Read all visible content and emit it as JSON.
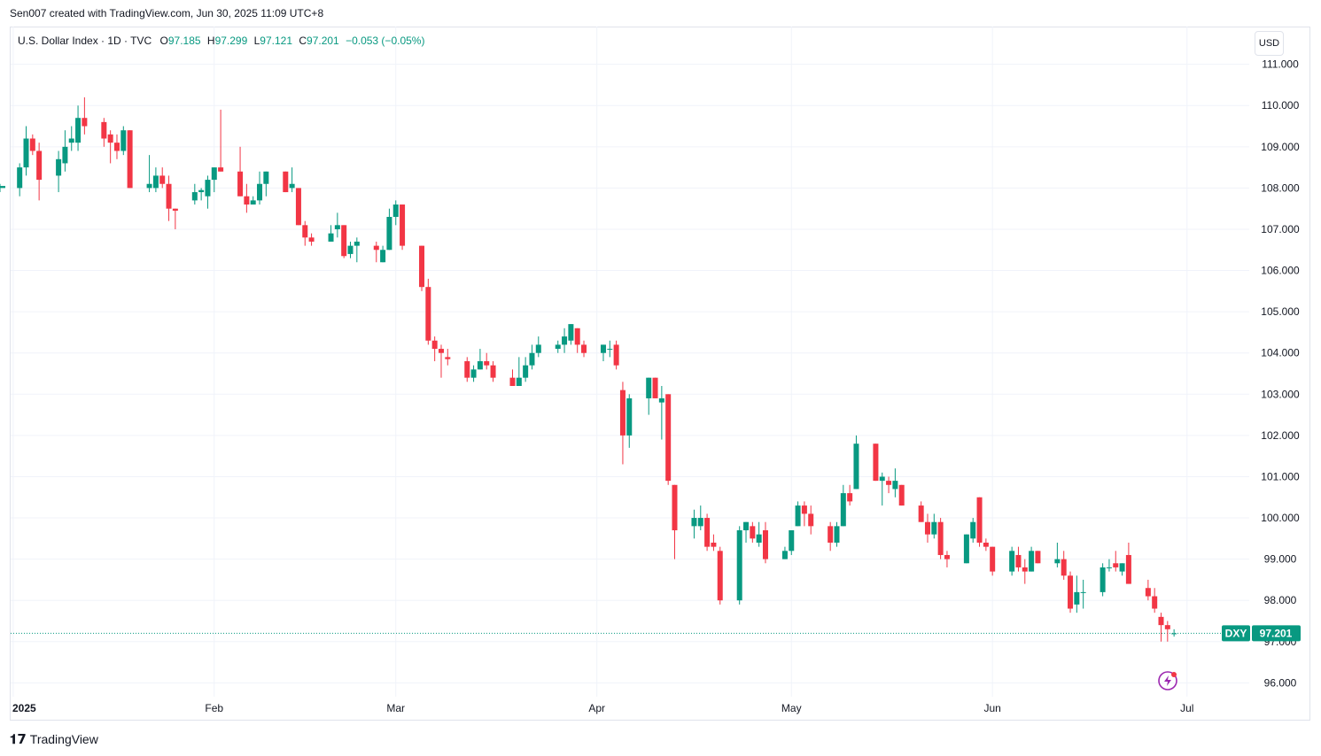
{
  "header": {
    "attribution": "Sen007 created with TradingView.com, Jun 30, 2025 11:09 UTC+8"
  },
  "legend": {
    "symbol": "U.S. Dollar Index · 1D · TVC",
    "open_label": "O",
    "open": "97.185",
    "high_label": "H",
    "high": "97.299",
    "low_label": "L",
    "low": "97.121",
    "close_label": "C",
    "close": "97.201",
    "change": "−0.053 (−0.05%)"
  },
  "currency_button": "USD",
  "price_tag": {
    "ticker": "DXY",
    "value": "97.201"
  },
  "footer": {
    "brand": "TradingView"
  },
  "colors": {
    "up": "#089981",
    "down": "#f23645",
    "grid": "#f0f3fa",
    "accent": "#9c27b0"
  },
  "icons": {
    "brand_logo": "tradingview-logo-icon",
    "alert": "lightning-alert-icon"
  },
  "chart_data": {
    "type": "candlestick",
    "title": "U.S. Dollar Index · 1D · TVC",
    "ylim": [
      95.6,
      111.1
    ],
    "y_ticks": [
      "96.000",
      "97.000",
      "98.000",
      "99.000",
      "100.000",
      "101.000",
      "102.000",
      "103.000",
      "104.000",
      "105.000",
      "106.000",
      "107.000",
      "108.000",
      "109.000",
      "110.000",
      "111.000"
    ],
    "x_ticks": [
      {
        "label": "2025",
        "day": -2,
        "bold": true
      },
      {
        "label": "Feb",
        "day": 29
      },
      {
        "label": "Mar",
        "day": 57
      },
      {
        "label": "Apr",
        "day": 88
      },
      {
        "label": "May",
        "day": 118
      },
      {
        "label": "Jun",
        "day": 149
      },
      {
        "label": "Jul",
        "day": 179
      }
    ],
    "grid": true,
    "last_price": 97.201,
    "candles": [
      {
        "o": 108.0,
        "h": 108.1,
        "l": 107.9,
        "c": 108.05
      },
      {
        "o": 108.0,
        "h": 108.6,
        "l": 107.8,
        "c": 108.5
      },
      {
        "o": 108.5,
        "h": 109.5,
        "l": 108.3,
        "c": 109.2
      },
      {
        "o": 109.2,
        "h": 109.3,
        "l": 108.8,
        "c": 108.9
      },
      {
        "o": 108.9,
        "h": 109.1,
        "l": 107.7,
        "c": 108.2
      },
      {
        "o": 108.3,
        "h": 108.9,
        "l": 107.9,
        "c": 108.7
      },
      {
        "o": 108.6,
        "h": 109.4,
        "l": 108.4,
        "c": 109.0
      },
      {
        "o": 109.1,
        "h": 109.5,
        "l": 108.9,
        "c": 109.2
      },
      {
        "o": 109.1,
        "h": 110.0,
        "l": 108.9,
        "c": 109.7
      },
      {
        "o": 109.7,
        "h": 110.2,
        "l": 109.3,
        "c": 109.5
      },
      {
        "o": 109.6,
        "h": 109.7,
        "l": 109.0,
        "c": 109.2
      },
      {
        "o": 109.3,
        "h": 109.4,
        "l": 108.6,
        "c": 109.1
      },
      {
        "o": 109.1,
        "h": 109.3,
        "l": 108.7,
        "c": 108.9
      },
      {
        "o": 108.9,
        "h": 109.5,
        "l": 108.8,
        "c": 109.4
      },
      {
        "o": 109.4,
        "h": 109.4,
        "l": 108.0,
        "c": 108.0
      },
      {
        "o": 108.0,
        "h": 108.8,
        "l": 107.9,
        "c": 108.1
      },
      {
        "o": 108.0,
        "h": 108.5,
        "l": 107.9,
        "c": 108.3
      },
      {
        "o": 108.3,
        "h": 108.5,
        "l": 108.0,
        "c": 108.1
      },
      {
        "o": 108.1,
        "h": 108.3,
        "l": 107.2,
        "c": 107.5
      },
      {
        "o": 107.5,
        "h": 107.5,
        "l": 107.0,
        "c": 107.45
      },
      {
        "o": 107.7,
        "h": 108.1,
        "l": 107.6,
        "c": 107.9
      },
      {
        "o": 107.9,
        "h": 108.0,
        "l": 107.7,
        "c": 107.95
      },
      {
        "o": 107.8,
        "h": 108.3,
        "l": 107.5,
        "c": 108.2
      },
      {
        "o": 108.2,
        "h": 108.5,
        "l": 107.9,
        "c": 108.5
      },
      {
        "o": 108.5,
        "h": 109.9,
        "l": 108.4,
        "c": 108.4
      },
      {
        "o": 108.4,
        "h": 109.0,
        "l": 107.8,
        "c": 107.8
      },
      {
        "o": 107.8,
        "h": 108.1,
        "l": 107.4,
        "c": 107.6
      },
      {
        "o": 107.6,
        "h": 107.8,
        "l": 107.6,
        "c": 107.7
      },
      {
        "o": 107.7,
        "h": 108.4,
        "l": 107.6,
        "c": 108.1
      },
      {
        "o": 108.1,
        "h": 108.4,
        "l": 107.8,
        "c": 108.4
      },
      {
        "o": 108.4,
        "h": 108.4,
        "l": 107.9,
        "c": 107.9
      },
      {
        "o": 108.0,
        "h": 108.5,
        "l": 107.9,
        "c": 108.1
      },
      {
        "o": 108.0,
        "h": 108.0,
        "l": 107.1,
        "c": 107.1
      },
      {
        "o": 107.1,
        "h": 107.2,
        "l": 106.6,
        "c": 106.8
      },
      {
        "o": 106.8,
        "h": 106.9,
        "l": 106.6,
        "c": 106.7
      },
      {
        "o": 106.7,
        "h": 107.1,
        "l": 106.7,
        "c": 106.9
      },
      {
        "o": 107.0,
        "h": 107.4,
        "l": 106.8,
        "c": 107.1
      },
      {
        "o": 107.1,
        "h": 107.1,
        "l": 106.3,
        "c": 106.35
      },
      {
        "o": 106.4,
        "h": 106.7,
        "l": 106.3,
        "c": 106.6
      },
      {
        "o": 106.6,
        "h": 106.8,
        "l": 106.2,
        "c": 106.7
      },
      {
        "o": 106.6,
        "h": 106.7,
        "l": 106.2,
        "c": 106.5
      },
      {
        "o": 106.2,
        "h": 106.6,
        "l": 106.2,
        "c": 106.5
      },
      {
        "o": 106.5,
        "h": 107.5,
        "l": 106.5,
        "c": 107.3
      },
      {
        "o": 107.3,
        "h": 107.7,
        "l": 107.1,
        "c": 107.6
      },
      {
        "o": 107.6,
        "h": 107.6,
        "l": 106.5,
        "c": 106.6
      },
      {
        "o": 106.6,
        "h": 106.6,
        "l": 105.5,
        "c": 105.6
      },
      {
        "o": 105.6,
        "h": 105.8,
        "l": 104.2,
        "c": 104.3
      },
      {
        "o": 104.3,
        "h": 104.4,
        "l": 103.8,
        "c": 104.1
      },
      {
        "o": 104.1,
        "h": 104.2,
        "l": 103.4,
        "c": 104.0
      },
      {
        "o": 103.9,
        "h": 104.1,
        "l": 103.7,
        "c": 103.85
      },
      {
        "o": 103.8,
        "h": 103.9,
        "l": 103.3,
        "c": 103.4
      },
      {
        "o": 103.4,
        "h": 103.7,
        "l": 103.3,
        "c": 103.6
      },
      {
        "o": 103.6,
        "h": 104.1,
        "l": 103.6,
        "c": 103.8
      },
      {
        "o": 103.8,
        "h": 104.0,
        "l": 103.6,
        "c": 103.7
      },
      {
        "o": 103.7,
        "h": 103.8,
        "l": 103.3,
        "c": 103.4
      },
      {
        "o": 103.4,
        "h": 103.6,
        "l": 103.2,
        "c": 103.2
      },
      {
        "o": 103.2,
        "h": 103.9,
        "l": 103.2,
        "c": 103.4
      },
      {
        "o": 103.4,
        "h": 103.9,
        "l": 103.3,
        "c": 103.7
      },
      {
        "o": 103.7,
        "h": 104.2,
        "l": 103.6,
        "c": 104.0
      },
      {
        "o": 104.0,
        "h": 104.4,
        "l": 103.9,
        "c": 104.2
      },
      {
        "o": 104.1,
        "h": 104.3,
        "l": 104.0,
        "c": 104.2
      },
      {
        "o": 104.2,
        "h": 104.6,
        "l": 104.0,
        "c": 104.4
      },
      {
        "o": 104.3,
        "h": 104.7,
        "l": 104.2,
        "c": 104.7
      },
      {
        "o": 104.6,
        "h": 104.6,
        "l": 104.0,
        "c": 104.2
      },
      {
        "o": 104.2,
        "h": 104.3,
        "l": 103.9,
        "c": 104.0
      },
      {
        "o": 104.0,
        "h": 104.2,
        "l": 103.8,
        "c": 104.2
      },
      {
        "o": 104.1,
        "h": 104.3,
        "l": 103.9,
        "c": 104.1
      },
      {
        "o": 104.2,
        "h": 104.3,
        "l": 103.6,
        "c": 103.7
      },
      {
        "o": 103.1,
        "h": 103.3,
        "l": 101.3,
        "c": 102.0
      },
      {
        "o": 102.0,
        "h": 103.0,
        "l": 101.7,
        "c": 102.9
      },
      {
        "o": 102.9,
        "h": 103.4,
        "l": 102.5,
        "c": 103.4
      },
      {
        "o": 103.4,
        "h": 103.4,
        "l": 102.9,
        "c": 102.9
      },
      {
        "o": 102.8,
        "h": 103.2,
        "l": 101.9,
        "c": 102.9
      },
      {
        "o": 103.0,
        "h": 103.0,
        "l": 100.8,
        "c": 100.9
      },
      {
        "o": 100.8,
        "h": 100.8,
        "l": 99.0,
        "c": 99.7
      },
      {
        "o": 99.8,
        "h": 100.2,
        "l": 99.5,
        "c": 100.0
      },
      {
        "o": 99.8,
        "h": 100.3,
        "l": 99.7,
        "c": 100.0
      },
      {
        "o": 100.0,
        "h": 100.1,
        "l": 99.2,
        "c": 99.3
      },
      {
        "o": 99.4,
        "h": 99.6,
        "l": 99.2,
        "c": 99.3
      },
      {
        "o": 99.2,
        "h": 99.3,
        "l": 97.9,
        "c": 98.0
      },
      {
        "o": 98.0,
        "h": 99.8,
        "l": 97.9,
        "c": 99.7
      },
      {
        "o": 99.7,
        "h": 99.9,
        "l": 99.4,
        "c": 99.9
      },
      {
        "o": 99.8,
        "h": 99.9,
        "l": 99.4,
        "c": 99.5
      },
      {
        "o": 99.4,
        "h": 99.9,
        "l": 99.3,
        "c": 99.6
      },
      {
        "o": 99.7,
        "h": 99.9,
        "l": 98.9,
        "c": 99.0
      },
      {
        "o": 99.0,
        "h": 99.3,
        "l": 99.0,
        "c": 99.2
      },
      {
        "o": 99.2,
        "h": 99.7,
        "l": 99.1,
        "c": 99.7
      },
      {
        "o": 99.8,
        "h": 100.4,
        "l": 99.8,
        "c": 100.3
      },
      {
        "o": 100.3,
        "h": 100.4,
        "l": 99.8,
        "c": 100.1
      },
      {
        "o": 100.1,
        "h": 100.3,
        "l": 99.6,
        "c": 99.8
      },
      {
        "o": 99.8,
        "h": 99.9,
        "l": 99.2,
        "c": 99.4
      },
      {
        "o": 99.4,
        "h": 99.9,
        "l": 99.3,
        "c": 99.8
      },
      {
        "o": 99.8,
        "h": 100.8,
        "l": 99.8,
        "c": 100.6
      },
      {
        "o": 100.6,
        "h": 100.8,
        "l": 100.3,
        "c": 100.4
      },
      {
        "o": 100.7,
        "h": 102.0,
        "l": 100.7,
        "c": 101.8
      },
      {
        "o": 101.8,
        "h": 101.8,
        "l": 100.9,
        "c": 100.9
      },
      {
        "o": 100.9,
        "h": 101.1,
        "l": 100.3,
        "c": 101.0
      },
      {
        "o": 100.9,
        "h": 101.0,
        "l": 100.6,
        "c": 100.8
      },
      {
        "o": 100.7,
        "h": 101.2,
        "l": 100.5,
        "c": 100.9
      },
      {
        "o": 100.8,
        "h": 100.8,
        "l": 100.3,
        "c": 100.3
      },
      {
        "o": 100.3,
        "h": 100.4,
        "l": 99.9,
        "c": 99.9
      },
      {
        "o": 99.9,
        "h": 100.1,
        "l": 99.4,
        "c": 99.6
      },
      {
        "o": 99.6,
        "h": 100.1,
        "l": 99.5,
        "c": 99.9
      },
      {
        "o": 99.9,
        "h": 100.0,
        "l": 99.0,
        "c": 99.1
      },
      {
        "o": 99.1,
        "h": 99.2,
        "l": 98.8,
        "c": 99.0
      },
      {
        "o": 98.9,
        "h": 99.6,
        "l": 98.9,
        "c": 99.6
      },
      {
        "o": 99.5,
        "h": 100.0,
        "l": 99.4,
        "c": 99.9
      },
      {
        "o": 100.5,
        "h": 100.5,
        "l": 99.3,
        "c": 99.4
      },
      {
        "o": 99.4,
        "h": 99.5,
        "l": 99.2,
        "c": 99.3
      },
      {
        "o": 99.3,
        "h": 99.3,
        "l": 98.6,
        "c": 98.7
      },
      {
        "o": 98.7,
        "h": 99.3,
        "l": 98.6,
        "c": 99.2
      },
      {
        "o": 99.1,
        "h": 99.3,
        "l": 98.7,
        "c": 98.8
      },
      {
        "o": 98.8,
        "h": 99.0,
        "l": 98.4,
        "c": 98.7
      },
      {
        "o": 98.7,
        "h": 99.3,
        "l": 98.7,
        "c": 99.2
      },
      {
        "o": 99.2,
        "h": 99.2,
        "l": 98.9,
        "c": 98.9
      },
      {
        "o": 98.9,
        "h": 99.4,
        "l": 98.8,
        "c": 99.0
      },
      {
        "o": 99.0,
        "h": 99.2,
        "l": 98.5,
        "c": 98.6
      },
      {
        "o": 98.6,
        "h": 98.7,
        "l": 97.7,
        "c": 97.8
      },
      {
        "o": 97.9,
        "h": 98.6,
        "l": 97.7,
        "c": 98.2
      },
      {
        "o": 98.2,
        "h": 98.5,
        "l": 97.8,
        "c": 98.2
      },
      {
        "o": 98.2,
        "h": 98.9,
        "l": 98.1,
        "c": 98.8
      },
      {
        "o": 98.8,
        "h": 99.0,
        "l": 98.7,
        "c": 98.8
      },
      {
        "o": 98.9,
        "h": 99.2,
        "l": 98.7,
        "c": 98.8
      },
      {
        "o": 98.7,
        "h": 98.9,
        "l": 98.6,
        "c": 98.9
      },
      {
        "o": 99.1,
        "h": 99.4,
        "l": 98.4,
        "c": 98.4
      },
      {
        "o": 98.3,
        "h": 98.5,
        "l": 98.0,
        "c": 98.1
      },
      {
        "o": 98.1,
        "h": 98.3,
        "l": 97.7,
        "c": 97.8
      },
      {
        "o": 97.6,
        "h": 97.7,
        "l": 97.0,
        "c": 97.4
      },
      {
        "o": 97.4,
        "h": 97.5,
        "l": 97.0,
        "c": 97.3
      },
      {
        "o": 97.185,
        "h": 97.299,
        "l": 97.121,
        "c": 97.201
      }
    ]
  }
}
